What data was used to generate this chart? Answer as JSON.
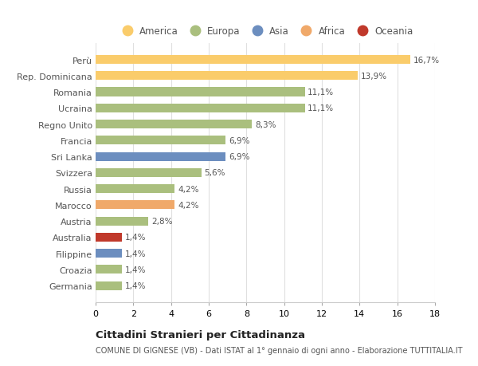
{
  "countries": [
    "Perù",
    "Rep. Dominicana",
    "Romania",
    "Ucraina",
    "Regno Unito",
    "Francia",
    "Sri Lanka",
    "Svizzera",
    "Russia",
    "Marocco",
    "Austria",
    "Australia",
    "Filippine",
    "Croazia",
    "Germania"
  ],
  "values": [
    16.7,
    13.9,
    11.1,
    11.1,
    8.3,
    6.9,
    6.9,
    5.6,
    4.2,
    4.2,
    2.8,
    1.4,
    1.4,
    1.4,
    1.4
  ],
  "labels": [
    "16,7%",
    "13,9%",
    "11,1%",
    "11,1%",
    "8,3%",
    "6,9%",
    "6,9%",
    "5,6%",
    "4,2%",
    "4,2%",
    "2,8%",
    "1,4%",
    "1,4%",
    "1,4%",
    "1,4%"
  ],
  "colors": [
    "#FACC6B",
    "#FACC6B",
    "#AABF7E",
    "#AABF7E",
    "#AABF7E",
    "#AABF7E",
    "#6C8EBF",
    "#AABF7E",
    "#AABF7E",
    "#F0A96A",
    "#AABF7E",
    "#C0392B",
    "#6C8EBF",
    "#AABF7E",
    "#AABF7E"
  ],
  "legend": [
    {
      "label": "America",
      "color": "#FACC6B"
    },
    {
      "label": "Europa",
      "color": "#AABF7E"
    },
    {
      "label": "Asia",
      "color": "#6C8EBF"
    },
    {
      "label": "Africa",
      "color": "#F0A96A"
    },
    {
      "label": "Oceania",
      "color": "#C0392B"
    }
  ],
  "title": "Cittadini Stranieri per Cittadinanza",
  "subtitle": "COMUNE DI GIGNESE (VB) - Dati ISTAT al 1° gennaio di ogni anno - Elaborazione TUTTITALIA.IT",
  "xlim": [
    0,
    18
  ],
  "xticks": [
    0,
    2,
    4,
    6,
    8,
    10,
    12,
    14,
    16,
    18
  ],
  "bg_color": "#FFFFFF",
  "grid_color": "#E0E0E0"
}
